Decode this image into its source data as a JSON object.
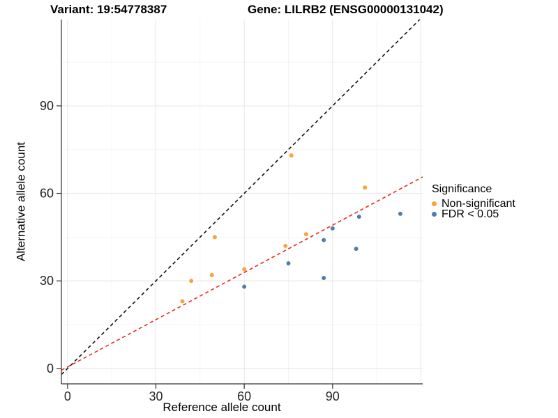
{
  "header": {
    "variant_title": "Variant: 19:54778387",
    "gene_title": "Gene: LILRB2 (ENSG00000131042)"
  },
  "chart_data": {
    "type": "scatter",
    "title": "",
    "xlabel": "Reference allele count",
    "ylabel": "Alternative allele count",
    "xlim": [
      -2.1,
      120.6
    ],
    "ylim": [
      -5.3,
      119.6
    ],
    "x_ticks": [
      0,
      30,
      60,
      90
    ],
    "y_ticks": [
      0,
      30,
      60,
      90
    ],
    "x_major_gridlines": [
      0,
      30,
      60,
      90,
      120
    ],
    "x_minor_gridlines": [
      15,
      45,
      75,
      105
    ],
    "y_major_gridlines": [
      0,
      30,
      60,
      90
    ],
    "y_minor_gridlines": [
      15,
      45,
      75,
      105
    ],
    "grid": true,
    "legend": {
      "title": "Significance",
      "position": "right",
      "entries": [
        {
          "label": "Non-significant",
          "color": "#F8A33C"
        },
        {
          "label": "FDR < 0.05",
          "color": "#4E7DAD"
        }
      ]
    },
    "series": [
      {
        "name": "Non-significant",
        "color": "#F8A33C",
        "points": [
          [
            76,
            73
          ],
          [
            101,
            62
          ],
          [
            50,
            45
          ],
          [
            81,
            46
          ],
          [
            74,
            42
          ],
          [
            60,
            34
          ],
          [
            49,
            32
          ],
          [
            42,
            30
          ],
          [
            39,
            23
          ]
        ]
      },
      {
        "name": "FDR < 0.05",
        "color": "#4E7DAD",
        "points": [
          [
            113,
            53
          ],
          [
            99,
            52
          ],
          [
            90,
            48
          ],
          [
            87,
            44
          ],
          [
            98,
            41
          ],
          [
            75,
            36
          ],
          [
            87,
            31
          ],
          [
            60,
            28
          ]
        ]
      }
    ],
    "reference_lines": [
      {
        "name": "identity",
        "slope": 1,
        "intercept": 0,
        "color": "#111111",
        "style": "dashed"
      },
      {
        "name": "fit",
        "slope": 0.54,
        "intercept": 0.5,
        "color": "#EE2C20",
        "style": "dashed"
      }
    ],
    "colors": {
      "grid_major": "#E5E5E5",
      "grid_minor": "#F2F2F2",
      "axis": "#333333",
      "tick_text": "#262626"
    }
  }
}
